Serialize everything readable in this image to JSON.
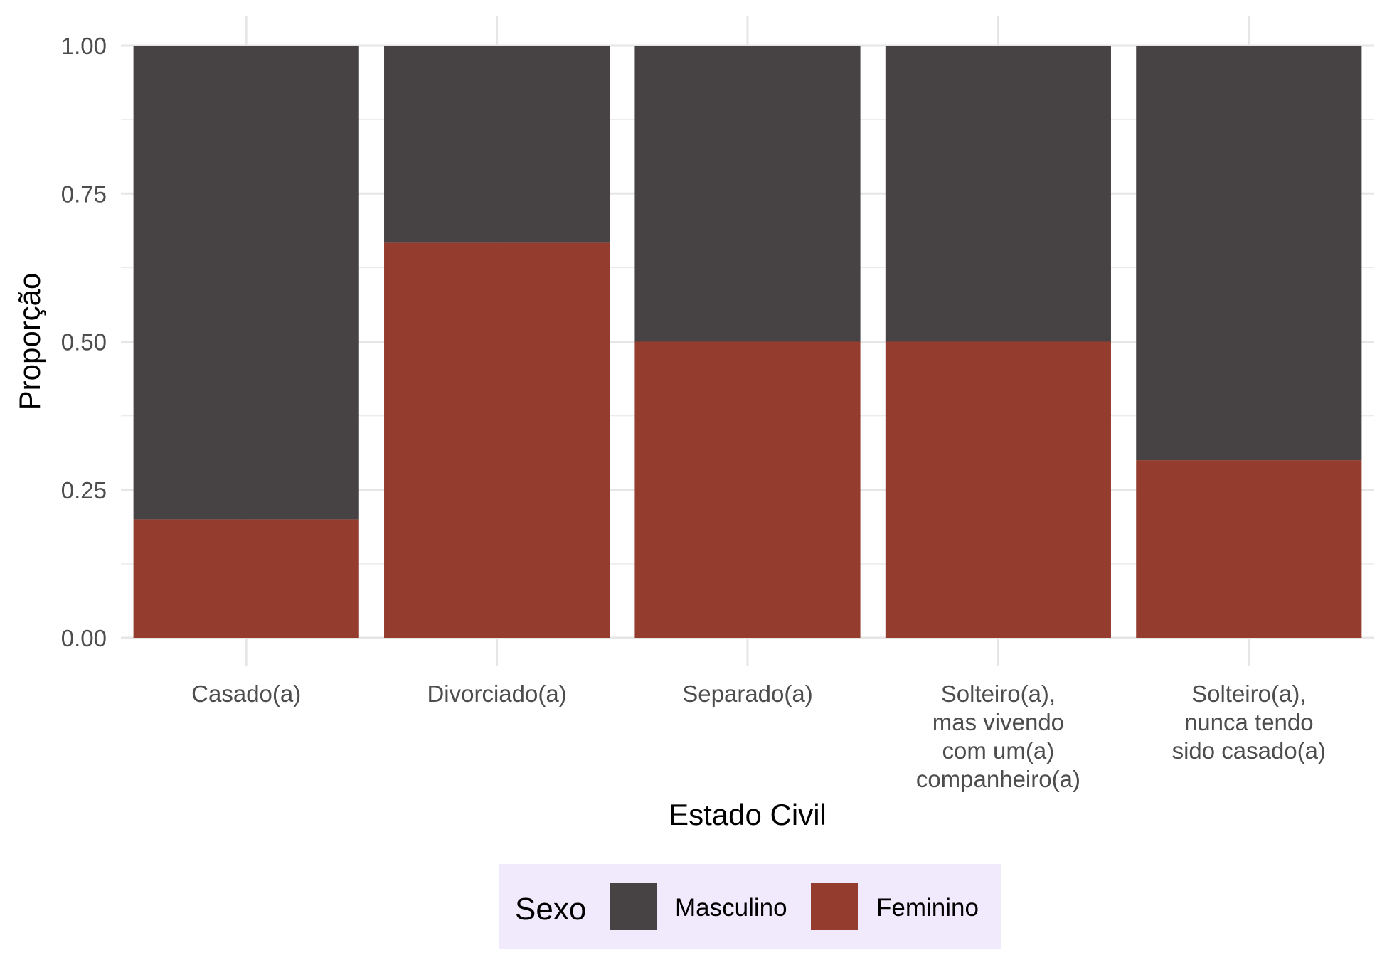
{
  "chart_data": {
    "type": "bar",
    "stacked": true,
    "orientation": "vertical",
    "categories": [
      [
        "Casado(a)"
      ],
      [
        "Divorciado(a)"
      ],
      [
        "Separado(a)"
      ],
      [
        "Solteiro(a),",
        "mas vivendo",
        "com um(a)",
        "companheiro(a)"
      ],
      [
        "Solteiro(a),",
        "nunca tendo",
        "sido casado(a)"
      ]
    ],
    "series": [
      {
        "name": "Masculino",
        "color": "#474344",
        "values": [
          0.8,
          0.333,
          0.5,
          0.5,
          0.7
        ]
      },
      {
        "name": "Feminino",
        "color": "#943D2F",
        "values": [
          0.2,
          0.667,
          0.5,
          0.5,
          0.3
        ]
      }
    ],
    "stack_order_bottom_to_top": [
      "Feminino",
      "Masculino"
    ],
    "xlabel": "Estado Civil",
    "ylabel": "Proporção",
    "ylim": [
      0,
      1
    ],
    "yticks": [
      "0.00",
      "0.25",
      "0.50",
      "0.75",
      "1.00"
    ],
    "grid": true,
    "legend": {
      "title": "Sexo",
      "position": "bottom",
      "background": "#F1E9FC",
      "items": [
        "Masculino",
        "Feminino"
      ]
    }
  }
}
